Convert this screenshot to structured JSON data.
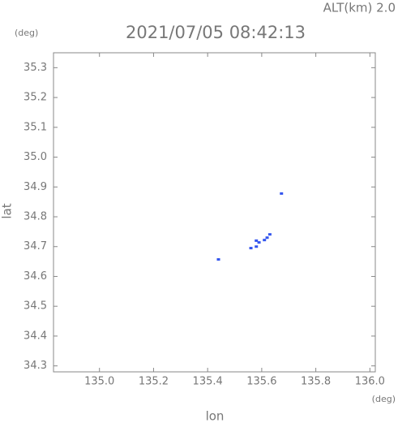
{
  "chart_data": {
    "type": "scatter",
    "title": "2021/07/05 08:42:13",
    "annotation": "ALT(km) 2.0",
    "y_unit": "(deg)",
    "x_unit": "(deg)",
    "xlabel": "lon",
    "ylabel": "lat",
    "color": "#3355ee",
    "x": [
      135.673,
      135.44,
      135.58,
      135.59,
      135.61,
      135.62,
      135.63,
      135.56,
      135.58
    ],
    "values": [
      34.878,
      34.657,
      34.72,
      34.714,
      34.722,
      34.73,
      34.741,
      34.695,
      34.7
    ],
    "xlim": [
      134.83,
      136.02
    ],
    "ylim": [
      34.28,
      35.35
    ],
    "xticks": [
      {
        "value": 135,
        "label": "135.0"
      },
      135.2,
      135.4,
      135.6,
      135.8,
      {
        "value": 136,
        "label": "136.0"
      }
    ],
    "yticks": [
      34.3,
      34.4,
      34.5,
      34.6,
      34.7,
      34.8,
      34.9,
      {
        "value": 35,
        "label": "35.0"
      },
      35.1,
      35.2,
      35.3
    ]
  }
}
